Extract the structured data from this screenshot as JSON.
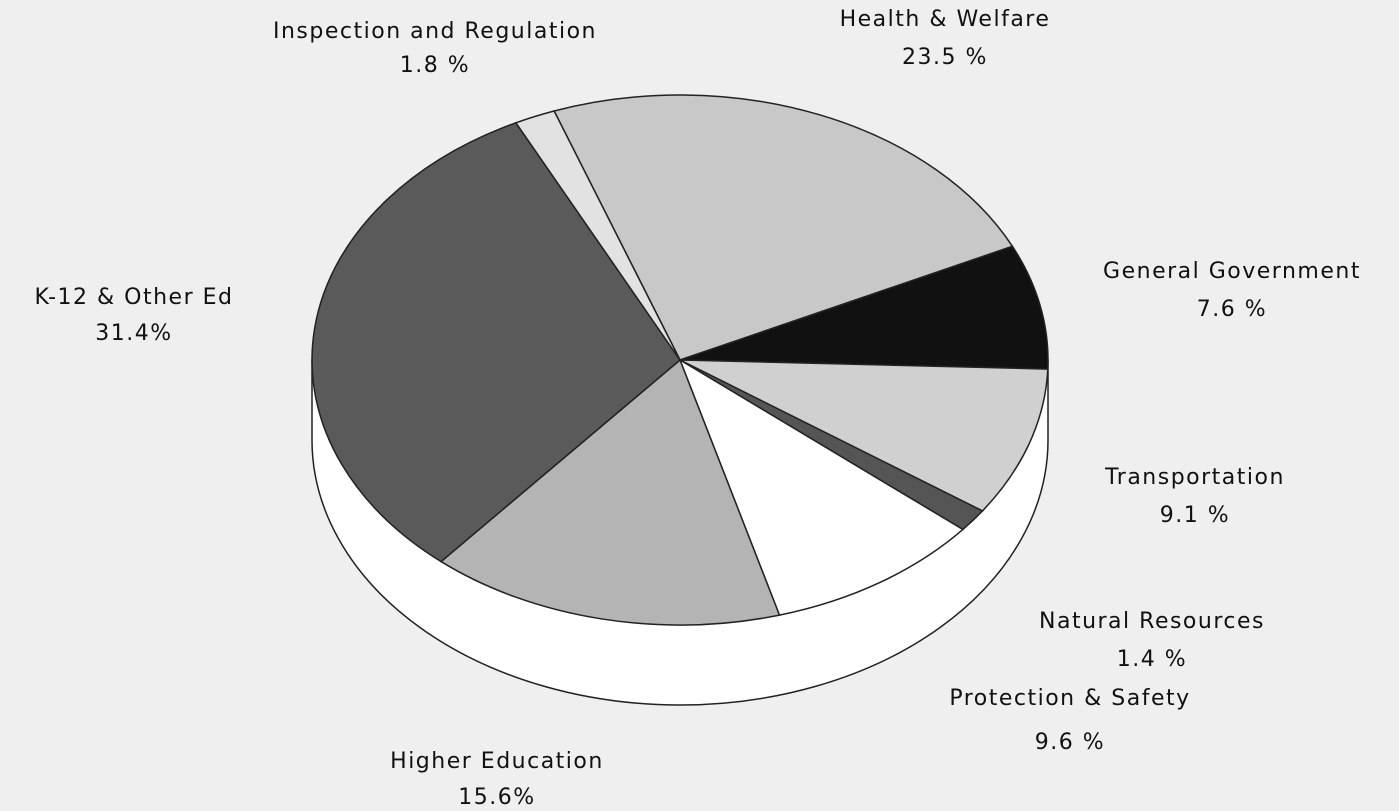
{
  "chart_data": {
    "type": "pie",
    "categories": [
      "Health & Welfare",
      "General Government",
      "Transportation",
      "Natural Resources",
      "Protection & Safety",
      "Higher Education",
      "K-12 & Other Ed",
      "Inspection and Regulation"
    ],
    "values": [
      23.5,
      7.6,
      9.1,
      1.4,
      9.6,
      15.6,
      31.4,
      1.8
    ],
    "value_labels": [
      "23.5 %",
      "7.6 %",
      "9.1 %",
      "1.4 %",
      "9.6 %",
      "15.6%",
      "31.4%",
      "1.8 %"
    ],
    "colors": [
      "#c8c8c8",
      "#111111",
      "#d0d0d0",
      "#555555",
      "#ffffff",
      "#b4b4b4",
      "#5a5a5a",
      "#e2e2e2"
    ]
  }
}
